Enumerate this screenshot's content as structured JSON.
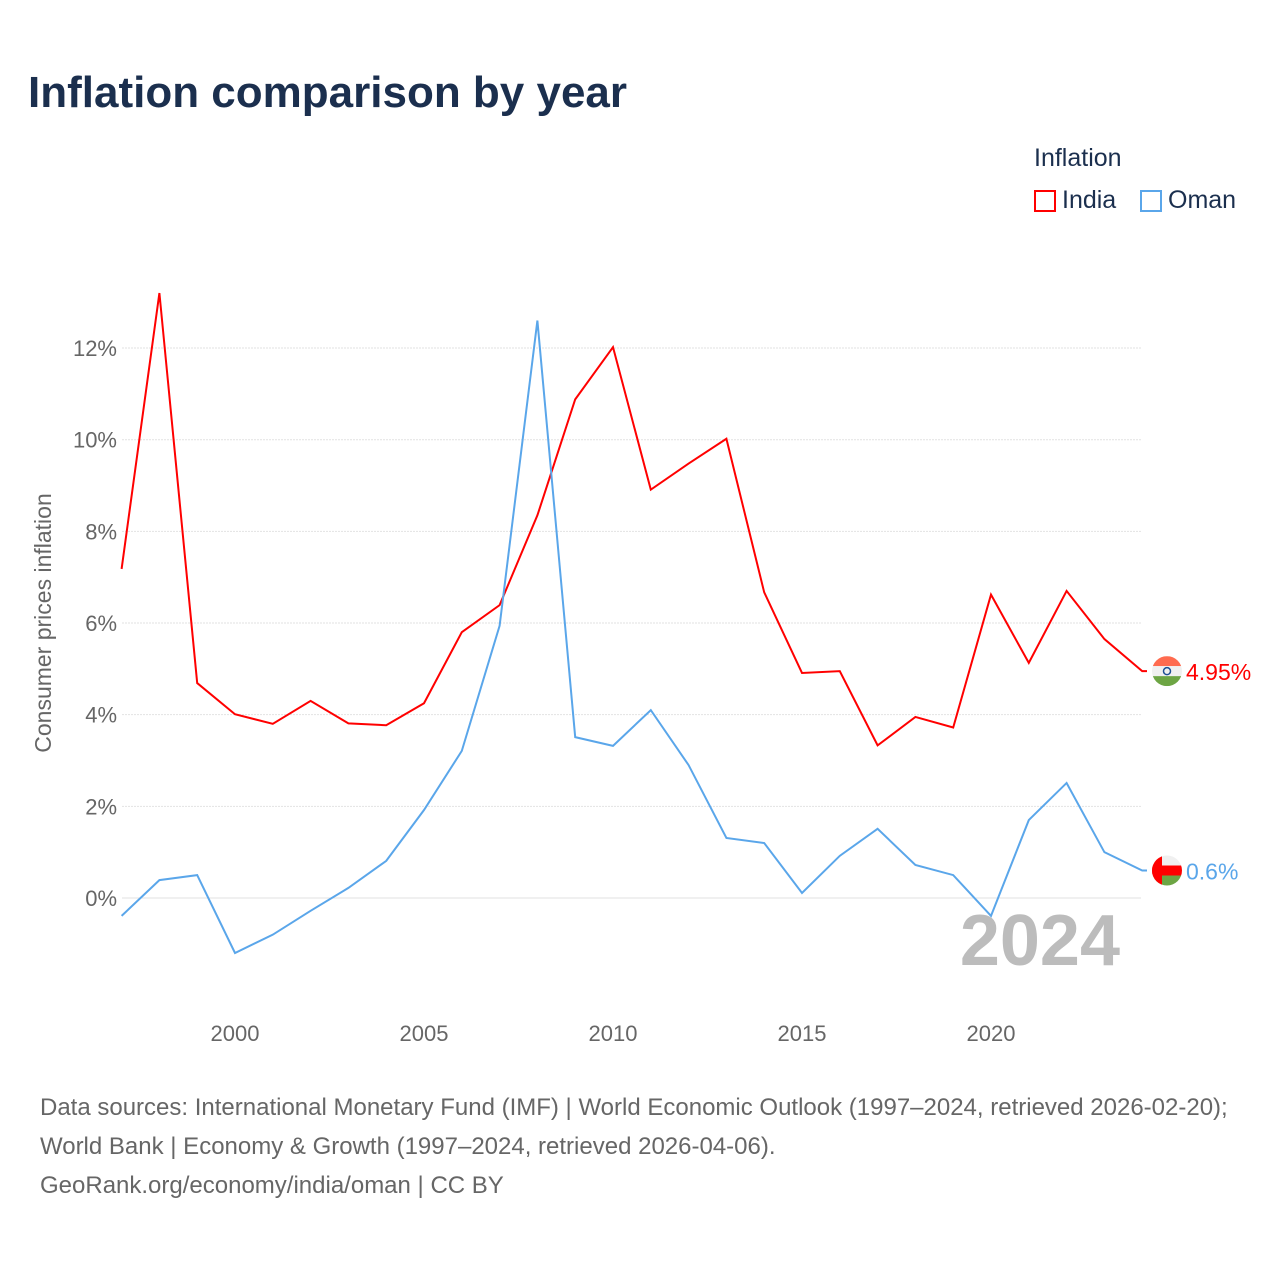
{
  "chart_data": {
    "type": "line",
    "title": "Inflation comparison by year",
    "ylabel": "Consumer prices inflation",
    "xlabel": "",
    "ylim": [
      -2.4,
      14.2
    ],
    "xlim": [
      1997,
      2024
    ],
    "yticks": [
      0,
      2,
      4,
      6,
      8,
      10,
      12
    ],
    "ytick_labels": [
      "0%",
      "2%",
      "4%",
      "6%",
      "8%",
      "10%",
      "12%"
    ],
    "xticks": [
      2000,
      2005,
      2010,
      2015,
      2020
    ],
    "xtick_labels": [
      "2000",
      "2005",
      "2010",
      "2015",
      "2020"
    ],
    "grid": true,
    "legend_title": "Inflation",
    "legend_position": "top-right",
    "x": [
      1997,
      1998,
      1999,
      2000,
      2001,
      2002,
      2003,
      2004,
      2005,
      2006,
      2007,
      2008,
      2009,
      2010,
      2011,
      2012,
      2013,
      2014,
      2015,
      2016,
      2017,
      2018,
      2019,
      2020,
      2021,
      2022,
      2023,
      2024
    ],
    "series": [
      {
        "name": "India",
        "color": "#ff0000",
        "end_label": "4.95%",
        "values": [
          7.18,
          13.2,
          4.69,
          4.01,
          3.8,
          4.3,
          3.81,
          3.77,
          4.25,
          5.8,
          6.39,
          8.35,
          10.88,
          12.02,
          8.91,
          9.48,
          10.02,
          6.67,
          4.91,
          4.95,
          3.33,
          3.95,
          3.72,
          6.62,
          5.13,
          6.7,
          5.65,
          4.95
        ]
      },
      {
        "name": "Oman",
        "color": "#5aa6ea",
        "end_label": "0.6%",
        "values": [
          -0.39,
          0.39,
          0.5,
          -1.2,
          -0.8,
          -0.28,
          0.22,
          0.81,
          1.92,
          3.21,
          5.94,
          12.6,
          3.51,
          3.32,
          4.1,
          2.9,
          1.31,
          1.2,
          0.11,
          0.92,
          1.51,
          0.72,
          0.5,
          -0.39,
          1.7,
          2.51,
          1.0,
          0.6
        ]
      }
    ],
    "year_watermark": "2024"
  },
  "footer": {
    "sources": "Data sources: International Monetary Fund (IMF) | World Economic Outlook (1997–2024, retrieved 2026-02-20); World Bank | Economy & Growth (1997–2024, retrieved 2026-04-06).",
    "link": "GeoRank.org/economy/india/oman | CC BY"
  }
}
